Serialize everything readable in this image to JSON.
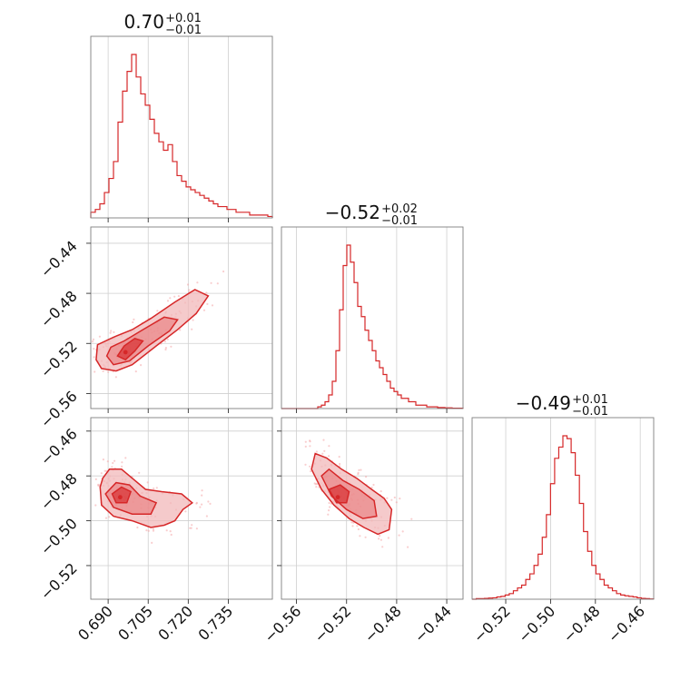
{
  "chart_data": {
    "type": "corner",
    "colors": {
      "main": "#d62728",
      "fill": "#f2b8b9",
      "fill_dark": "#e8787a",
      "scatter": "#f4a6a8"
    },
    "grid": true,
    "parameters": [
      {
        "title_main": "0.70",
        "title_plus": "+0.01",
        "title_minus": "−0.01",
        "range": [
          0.6835,
          0.7515
        ],
        "ticks": [
          0.69,
          0.705,
          0.72,
          0.735
        ],
        "tick_labels": [
          "0.690",
          "0.705",
          "0.720",
          "0.735"
        ]
      },
      {
        "title_main": "−0.52",
        "title_plus": "+0.02",
        "title_minus": "−0.01",
        "range": [
          -0.572,
          -0.427
        ],
        "ticks": [
          -0.56,
          -0.52,
          -0.48,
          -0.44
        ],
        "tick_labels": [
          "−0.56",
          "−0.52",
          "−0.48",
          "−0.44"
        ]
      },
      {
        "title_main": "−0.49",
        "title_plus": "+0.01",
        "title_minus": "−0.01",
        "range": [
          -0.535,
          -0.454
        ],
        "ticks": [
          -0.52,
          -0.5,
          -0.48,
          -0.46
        ],
        "tick_labels": [
          "−0.52",
          "−0.50",
          "−0.48",
          "−0.46"
        ]
      }
    ],
    "histograms": [
      {
        "param": 0,
        "counts": [
          2,
          3,
          5,
          9,
          14,
          20,
          34,
          45,
          52,
          58,
          50,
          44,
          40,
          35,
          30,
          27,
          24,
          26,
          20,
          15,
          13,
          11,
          10,
          9,
          8,
          7,
          6,
          5,
          4,
          4,
          3,
          3,
          2,
          2,
          2,
          1,
          1,
          1,
          1,
          0.5
        ]
      },
      {
        "param": 1,
        "counts": [
          0,
          0,
          0,
          0,
          0,
          0,
          0,
          0,
          0,
          0,
          0.5,
          1,
          2,
          4,
          8,
          17,
          29,
          42,
          48,
          43,
          37,
          30,
          27,
          23,
          20,
          17,
          14,
          12,
          10,
          8,
          6,
          5,
          4,
          3,
          3,
          2,
          2,
          1,
          1,
          1,
          0.5,
          0.5,
          0.5,
          0.3,
          0.3,
          0.2,
          0.2,
          0.1,
          0.1,
          0.1
        ]
      },
      {
        "param": 2,
        "counts": [
          0,
          0.2,
          0.2,
          0.3,
          0.4,
          0.5,
          0.8,
          1,
          1.5,
          2,
          3,
          4,
          5,
          7,
          9,
          12,
          16,
          22,
          30,
          41,
          50,
          54,
          58,
          57,
          52,
          44,
          34,
          24,
          17,
          12,
          9,
          7,
          5,
          4,
          3,
          2,
          1.5,
          1.2,
          1,
          0.8,
          0.5,
          0.3,
          0.2,
          0.1
        ]
      }
    ],
    "pairs": [
      {
        "x_param": 0,
        "y_param": 1,
        "center": [
          0.6965,
          -0.527
        ],
        "outer": [
          [
            0.6855,
            -0.533
          ],
          [
            0.6875,
            -0.54
          ],
          [
            0.693,
            -0.542
          ],
          [
            0.699,
            -0.537
          ],
          [
            0.708,
            -0.522
          ],
          [
            0.716,
            -0.509
          ],
          [
            0.723,
            -0.496
          ],
          [
            0.7275,
            -0.482
          ],
          [
            0.7225,
            -0.477
          ],
          [
            0.715,
            -0.487
          ],
          [
            0.706,
            -0.5
          ],
          [
            0.699,
            -0.509
          ],
          [
            0.692,
            -0.515
          ],
          [
            0.686,
            -0.521
          ]
        ],
        "mid": [
          [
            0.6895,
            -0.53
          ],
          [
            0.692,
            -0.537
          ],
          [
            0.698,
            -0.534
          ],
          [
            0.705,
            -0.522
          ],
          [
            0.713,
            -0.51
          ],
          [
            0.716,
            -0.501
          ],
          [
            0.711,
            -0.499
          ],
          [
            0.703,
            -0.509
          ],
          [
            0.696,
            -0.518
          ],
          [
            0.691,
            -0.523
          ]
        ],
        "inner": [
          [
            0.6935,
            -0.53
          ],
          [
            0.6965,
            -0.533
          ],
          [
            0.7,
            -0.526
          ],
          [
            0.703,
            -0.518
          ],
          [
            0.7,
            -0.516
          ],
          [
            0.696,
            -0.522
          ]
        ]
      },
      {
        "x_param": 0,
        "y_param": 2,
        "center": [
          0.6945,
          -0.4895
        ],
        "outer": [
          [
            0.687,
            -0.485
          ],
          [
            0.6875,
            -0.493
          ],
          [
            0.692,
            -0.498
          ],
          [
            0.699,
            -0.5
          ],
          [
            0.706,
            -0.503
          ],
          [
            0.711,
            -0.502
          ],
          [
            0.715,
            -0.5
          ],
          [
            0.718,
            -0.495
          ],
          [
            0.7215,
            -0.492
          ],
          [
            0.7175,
            -0.488
          ],
          [
            0.71,
            -0.487
          ],
          [
            0.704,
            -0.486
          ],
          [
            0.699,
            -0.481
          ],
          [
            0.695,
            -0.477
          ],
          [
            0.6905,
            -0.477
          ],
          [
            0.688,
            -0.481
          ]
        ],
        "mid": [
          [
            0.689,
            -0.488
          ],
          [
            0.692,
            -0.494
          ],
          [
            0.699,
            -0.497
          ],
          [
            0.706,
            -0.497
          ],
          [
            0.708,
            -0.492
          ],
          [
            0.702,
            -0.489
          ],
          [
            0.698,
            -0.484
          ],
          [
            0.693,
            -0.483
          ]
        ],
        "inner": [
          [
            0.6915,
            -0.488
          ],
          [
            0.693,
            -0.492
          ],
          [
            0.697,
            -0.492
          ],
          [
            0.6985,
            -0.487
          ],
          [
            0.695,
            -0.485
          ]
        ]
      },
      {
        "x_param": 1,
        "y_param": 2,
        "center": [
          -0.527,
          -0.4895
        ],
        "outer": [
          [
            -0.548,
            -0.477
          ],
          [
            -0.54,
            -0.486
          ],
          [
            -0.53,
            -0.493
          ],
          [
            -0.518,
            -0.499
          ],
          [
            -0.506,
            -0.503
          ],
          [
            -0.495,
            -0.506
          ],
          [
            -0.486,
            -0.504
          ],
          [
            -0.484,
            -0.495
          ],
          [
            -0.49,
            -0.49
          ],
          [
            -0.5,
            -0.486
          ],
          [
            -0.512,
            -0.481
          ],
          [
            -0.524,
            -0.477
          ],
          [
            -0.536,
            -0.472
          ],
          [
            -0.545,
            -0.47
          ]
        ],
        "mid": [
          [
            -0.54,
            -0.48
          ],
          [
            -0.532,
            -0.489
          ],
          [
            -0.52,
            -0.495
          ],
          [
            -0.507,
            -0.499
          ],
          [
            -0.496,
            -0.498
          ],
          [
            -0.498,
            -0.491
          ],
          [
            -0.51,
            -0.486
          ],
          [
            -0.523,
            -0.482
          ],
          [
            -0.534,
            -0.477
          ]
        ],
        "inner": [
          [
            -0.534,
            -0.486
          ],
          [
            -0.528,
            -0.492
          ],
          [
            -0.52,
            -0.492
          ],
          [
            -0.518,
            -0.487
          ],
          [
            -0.525,
            -0.484
          ]
        ]
      }
    ]
  }
}
